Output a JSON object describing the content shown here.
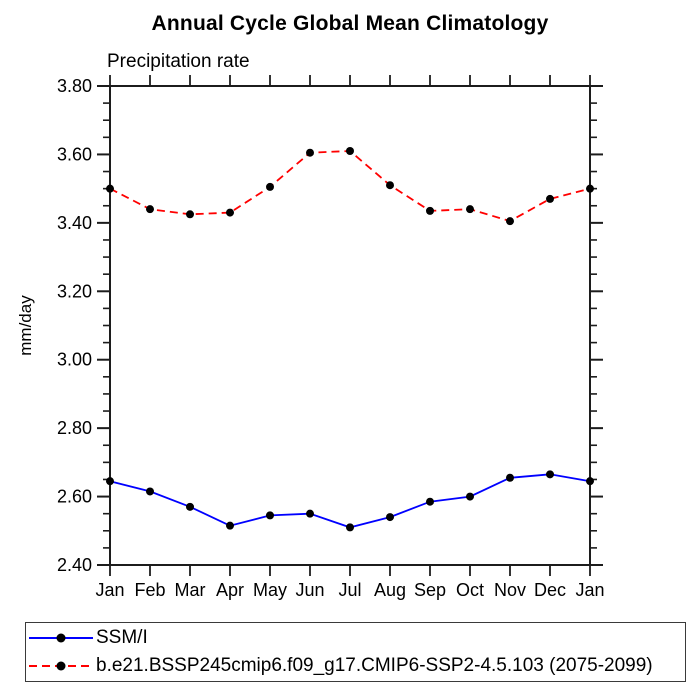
{
  "chart": {
    "title": "Annual Cycle Global Mean Climatology",
    "subtitle": "Precipitation rate"
  },
  "chart_data": {
    "type": "line",
    "title": "Annual Cycle Global Mean Climatology",
    "subtitle": "Precipitation rate",
    "categories": [
      "Jan",
      "Feb",
      "Mar",
      "Apr",
      "May",
      "Jun",
      "Jul",
      "Aug",
      "Sep",
      "Oct",
      "Nov",
      "Dec",
      "Jan"
    ],
    "series": [
      {
        "name": "SSM/I",
        "color": "#0000ff",
        "line_style": "solid",
        "marker": "circle",
        "marker_color": "#000000",
        "values": [
          2.645,
          2.615,
          2.57,
          2.515,
          2.545,
          2.55,
          2.51,
          2.54,
          2.585,
          2.6,
          2.655,
          2.665,
          2.645
        ]
      },
      {
        "name": "b.e21.BSSP245cmip6.f09_g17.CMIP6-SSP2-4.5.103 (2075-2099)",
        "color": "#ff0000",
        "line_style": "dashed",
        "marker": "circle",
        "marker_color": "#000000",
        "values": [
          3.5,
          3.44,
          3.425,
          3.43,
          3.505,
          3.605,
          3.61,
          3.51,
          3.435,
          3.44,
          3.405,
          3.47,
          3.5
        ]
      }
    ],
    "xlabel": "",
    "ylabel": "mm/day",
    "ylim": [
      2.4,
      3.8
    ],
    "yticks": [
      "2.40",
      "2.60",
      "2.80",
      "3.00",
      "3.20",
      "3.40",
      "3.60",
      "3.80"
    ],
    "ytick_major_step": 0.2,
    "ytick_minor_step": 0.05,
    "grid": false,
    "legend_position": "bottom",
    "axis_color": "#1c1c1c"
  }
}
